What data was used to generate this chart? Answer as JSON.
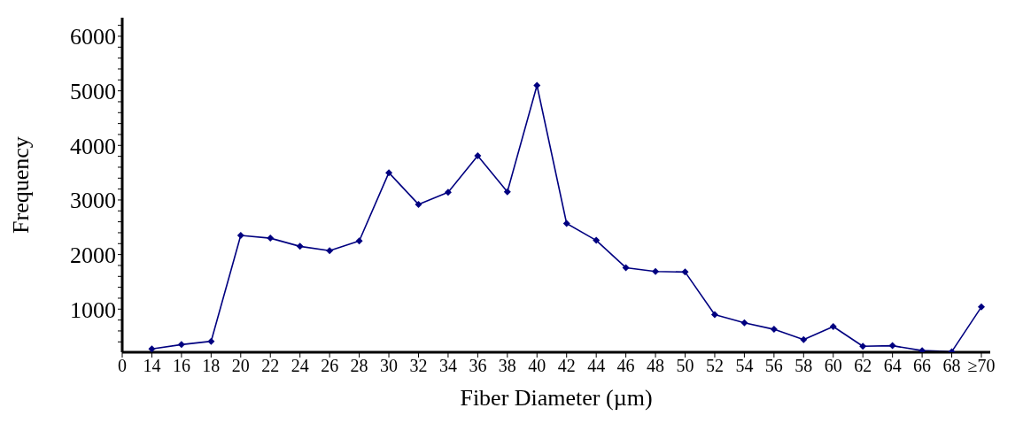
{
  "chart_data": {
    "type": "line",
    "xlabel": "Fiber Diameter (µm)",
    "ylabel": "Frequency",
    "categories": [
      "0",
      "14",
      "16",
      "18",
      "20",
      "22",
      "24",
      "26",
      "28",
      "30",
      "32",
      "34",
      "36",
      "38",
      "40",
      "42",
      "44",
      "46",
      "48",
      "50",
      "52",
      "54",
      "56",
      "58",
      "60",
      "62",
      "64",
      "66",
      "68",
      "≥70"
    ],
    "series": [
      {
        "color": "#000080",
        "values": [
          null,
          270,
          350,
          410,
          2350,
          2300,
          2150,
          2070,
          2250,
          3500,
          2920,
          3140,
          3810,
          3150,
          5100,
          2570,
          2260,
          1760,
          1690,
          1680,
          900,
          750,
          630,
          440,
          680,
          320,
          330,
          240,
          220,
          1040
        ]
      }
    ],
    "ylim": [
      210,
      6340
    ],
    "yticks": [
      {
        "value": 400,
        "label": null
      },
      {
        "value": 600,
        "label": null
      },
      {
        "value": 800,
        "label": null
      },
      1000,
      {
        "value": 1200,
        "label": null
      },
      {
        "value": 1400,
        "label": null
      },
      {
        "value": 1600,
        "label": null
      },
      {
        "value": 1800,
        "label": null
      },
      2000,
      {
        "value": 2200,
        "label": null
      },
      {
        "value": 2400,
        "label": null
      },
      {
        "value": 2600,
        "label": null
      },
      {
        "value": 2800,
        "label": null
      },
      3000,
      {
        "value": 3200,
        "label": null
      },
      {
        "value": 3400,
        "label": null
      },
      {
        "value": 3600,
        "label": null
      },
      {
        "value": 3800,
        "label": null
      },
      4000,
      {
        "value": 4200,
        "label": null
      },
      {
        "value": 4400,
        "label": null
      },
      {
        "value": 4600,
        "label": null
      },
      {
        "value": 4800,
        "label": null
      },
      5000,
      {
        "value": 5200,
        "label": null
      },
      {
        "value": 5400,
        "label": null
      },
      {
        "value": 5600,
        "label": null
      },
      {
        "value": 5800,
        "label": null
      },
      6000,
      {
        "value": 6200,
        "label": null
      }
    ],
    "grid": false,
    "legend": false,
    "marker": "diamond",
    "line_style": "solid"
  }
}
